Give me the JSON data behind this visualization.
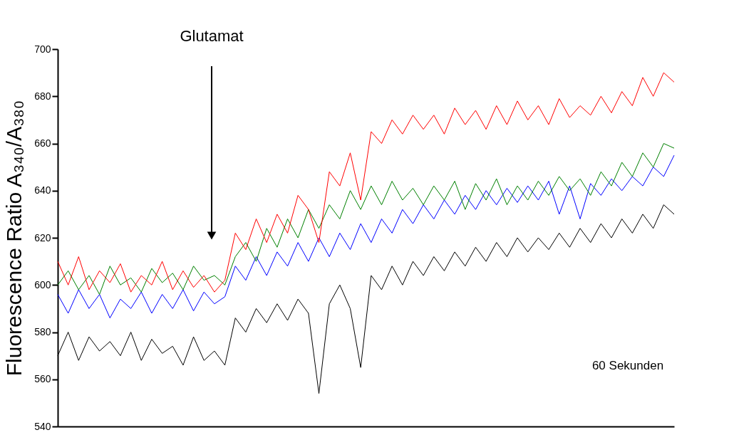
{
  "chart_data": {
    "type": "line",
    "ylabel": "Fluorescence Ratio A₃₄₀/A₃₈₀",
    "categories": [
      null,
      null,
      null,
      null,
      null,
      null,
      null,
      null,
      null,
      null,
      null,
      null,
      null,
      null,
      null,
      null,
      null,
      null,
      null,
      null,
      null,
      null,
      null,
      null,
      null,
      null,
      null,
      null,
      null,
      null,
      null,
      null,
      null,
      null,
      null,
      null,
      null,
      null,
      null,
      null,
      null,
      null,
      null,
      null,
      null,
      null,
      null,
      null,
      null,
      null,
      null,
      null,
      null,
      null,
      null,
      null,
      null,
      null,
      null,
      null
    ],
    "series": [
      {
        "color": "#000000",
        "values": [
          570,
          580,
          568,
          578,
          572,
          576,
          570,
          580,
          568,
          577,
          571,
          574,
          566,
          578,
          568,
          572,
          566,
          586,
          580,
          590,
          584,
          592,
          585,
          594,
          588,
          554,
          592,
          600,
          590,
          565,
          604,
          598,
          608,
          600,
          610,
          604,
          612,
          606,
          614,
          608,
          616,
          610,
          618,
          612,
          620,
          614,
          620,
          615,
          622,
          616,
          624,
          618,
          626,
          620,
          628,
          622,
          630,
          624,
          634,
          630
        ]
      },
      {
        "color": "#0000ff",
        "values": [
          596,
          588,
          598,
          590,
          596,
          586,
          594,
          590,
          597,
          588,
          596,
          590,
          598,
          589,
          597,
          592,
          595,
          608,
          602,
          612,
          604,
          614,
          608,
          618,
          610,
          620,
          612,
          622,
          615,
          626,
          618,
          628,
          622,
          632,
          626,
          634,
          628,
          636,
          630,
          638,
          632,
          640,
          634,
          641,
          635,
          642,
          636,
          644,
          630,
          642,
          628,
          643,
          638,
          645,
          640,
          646,
          642,
          650,
          646,
          655
        ]
      },
      {
        "color": "#008000",
        "values": [
          600,
          606,
          598,
          604,
          596,
          608,
          600,
          603,
          597,
          607,
          601,
          605,
          598,
          608,
          602,
          604,
          600,
          612,
          618,
          610,
          624,
          616,
          628,
          620,
          632,
          624,
          634,
          628,
          640,
          632,
          642,
          634,
          644,
          636,
          641,
          634,
          642,
          636,
          644,
          632,
          643,
          636,
          645,
          634,
          642,
          636,
          644,
          638,
          646,
          640,
          645,
          638,
          648,
          642,
          652,
          646,
          656,
          650,
          660,
          658
        ]
      },
      {
        "color": "#ff0000",
        "values": [
          610,
          600,
          612,
          598,
          606,
          601,
          609,
          597,
          604,
          600,
          610,
          598,
          606,
          599,
          604,
          597,
          602,
          622,
          615,
          628,
          618,
          630,
          622,
          638,
          632,
          618,
          648,
          642,
          656,
          636,
          665,
          660,
          670,
          664,
          672,
          666,
          672,
          664,
          675,
          668,
          674,
          666,
          676,
          668,
          678,
          670,
          676,
          668,
          679,
          671,
          676,
          672,
          680,
          673,
          682,
          676,
          688,
          680,
          690,
          686
        ]
      }
    ],
    "ylim": [
      540,
      700
    ],
    "yticks": [
      540,
      560,
      580,
      600,
      620,
      640,
      660,
      680,
      700
    ],
    "grid": false,
    "legend": false,
    "line_style": "solid",
    "marker": "none",
    "tick_labels": "y",
    "annotations": [
      "Glutamat",
      "60 Sekunden"
    ]
  }
}
